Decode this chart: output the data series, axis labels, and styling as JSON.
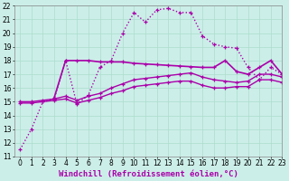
{
  "background_color": "#cceee8",
  "line_color": "#aa00aa",
  "xlabel": "Windchill (Refroidissement éolien,°C)",
  "xlabel_fontsize": 6.5,
  "ylim": [
    11,
    22
  ],
  "xlim": [
    -0.5,
    23
  ],
  "yticks": [
    11,
    12,
    13,
    14,
    15,
    16,
    17,
    18,
    19,
    20,
    21,
    22
  ],
  "xticks": [
    0,
    1,
    2,
    3,
    4,
    5,
    6,
    7,
    8,
    9,
    10,
    11,
    12,
    13,
    14,
    15,
    16,
    17,
    18,
    19,
    20,
    21,
    22,
    23
  ],
  "series": [
    {
      "x": [
        0,
        1,
        2,
        3,
        4,
        5,
        6,
        7,
        8,
        9,
        10,
        11,
        12,
        13,
        14,
        15,
        16,
        17,
        18,
        19,
        20,
        21,
        22,
        23
      ],
      "y": [
        11.5,
        13.0,
        15.0,
        15.2,
        18.0,
        14.8,
        15.5,
        17.5,
        18.0,
        20.0,
        21.5,
        20.8,
        21.7,
        21.8,
        21.5,
        21.5,
        19.8,
        19.2,
        19.0,
        18.9,
        17.5,
        16.6,
        17.5,
        17.0
      ],
      "style": "dotted",
      "lw": 1.0
    },
    {
      "x": [
        3,
        4,
        5,
        6,
        7,
        8,
        9,
        10,
        11,
        12,
        13,
        14,
        15,
        16,
        17,
        18,
        19,
        20,
        21,
        22,
        23
      ],
      "y": [
        15.3,
        18.0,
        18.0,
        18.0,
        17.9,
        17.9,
        17.9,
        17.8,
        17.75,
        17.7,
        17.65,
        17.6,
        17.55,
        17.5,
        17.5,
        18.0,
        17.2,
        17.0,
        17.5,
        18.0,
        17.0
      ],
      "style": "solid",
      "lw": 1.2
    },
    {
      "x": [
        0,
        1,
        2,
        3,
        4,
        5,
        6,
        7,
        8,
        9,
        10,
        11,
        12,
        13,
        14,
        15,
        16,
        17,
        18,
        19,
        20,
        21,
        22,
        23
      ],
      "y": [
        15.0,
        15.0,
        15.1,
        15.2,
        15.4,
        15.1,
        15.4,
        15.6,
        16.0,
        16.3,
        16.6,
        16.7,
        16.8,
        16.9,
        17.0,
        17.1,
        16.8,
        16.6,
        16.5,
        16.4,
        16.5,
        17.0,
        17.0,
        16.8
      ],
      "style": "solid",
      "lw": 1.0
    },
    {
      "x": [
        0,
        1,
        2,
        3,
        4,
        5,
        6,
        7,
        8,
        9,
        10,
        11,
        12,
        13,
        14,
        15,
        16,
        17,
        18,
        19,
        20,
        21,
        22,
        23
      ],
      "y": [
        14.9,
        14.9,
        15.0,
        15.1,
        15.2,
        14.9,
        15.1,
        15.3,
        15.6,
        15.8,
        16.1,
        16.2,
        16.3,
        16.4,
        16.5,
        16.5,
        16.2,
        16.0,
        16.0,
        16.1,
        16.1,
        16.6,
        16.6,
        16.4
      ],
      "style": "solid",
      "lw": 1.0
    }
  ],
  "marker": "+",
  "marker_size": 3.5,
  "grid_color": "#aaddcc",
  "tick_fontsize": 5.5,
  "fig_bg": "#cceee8"
}
